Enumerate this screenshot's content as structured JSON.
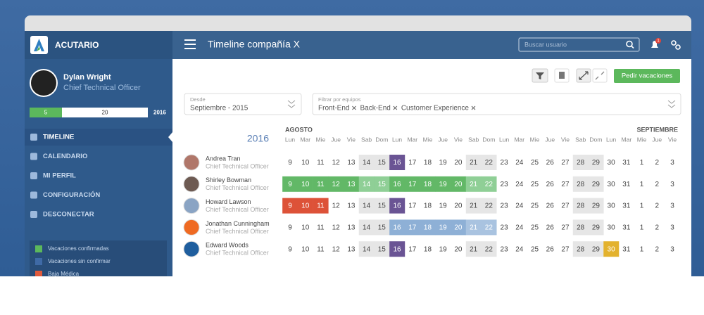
{
  "header": {
    "brand": "ACUTARIO",
    "title": "Timeline compañía X",
    "search_placeholder": "Buscar usuario",
    "notifications": "1"
  },
  "user": {
    "name": "Dylan Wright",
    "role": "Chief Technical Officer",
    "progress": {
      "used": "5",
      "total": "20",
      "year": "2016"
    }
  },
  "menu": [
    {
      "label": "TIMELINE",
      "active": true
    },
    {
      "label": "CALENDARIO",
      "active": false
    },
    {
      "label": "MI PERFIL",
      "active": false
    },
    {
      "label": "CONFIGURACIÓN",
      "active": false
    },
    {
      "label": "DESCONECTAR",
      "active": false
    }
  ],
  "legend": [
    {
      "label": "Vacaciones confirmadas",
      "color": "#5cb85c"
    },
    {
      "label": "Vacaciones sin confirmar",
      "color": "#3f6aa6"
    },
    {
      "label": "Baja Médica",
      "color": "#e05a3c"
    }
  ],
  "toolbar": {
    "button": "Pedir vacaciones"
  },
  "filters": {
    "date_label": "Desde",
    "date_value": "Septiembre - 2015",
    "teams_label": "Filtrar por equipos",
    "teams": [
      "Front-End",
      "Back-End",
      "Customer Experience"
    ]
  },
  "timeline": {
    "year": "2016",
    "months": [
      {
        "label": "AGOSTO",
        "start": 0
      },
      {
        "label": "SEPTIEMBRE",
        "start": 23
      }
    ],
    "today": 7,
    "days": [
      {
        "weekday": "Lun",
        "number": 9,
        "weekend": false
      },
      {
        "weekday": "Mar",
        "number": 10,
        "weekend": false
      },
      {
        "weekday": "Mie",
        "number": 11,
        "weekend": false
      },
      {
        "weekday": "Jue",
        "number": 12,
        "weekend": false
      },
      {
        "weekday": "Vie",
        "number": 13,
        "weekend": false
      },
      {
        "weekday": "Sab",
        "number": 14,
        "weekend": true
      },
      {
        "weekday": "Dom",
        "number": 15,
        "weekend": true
      },
      {
        "weekday": "Lun",
        "number": 16,
        "weekend": false
      },
      {
        "weekday": "Mar",
        "number": 17,
        "weekend": false
      },
      {
        "weekday": "Mie",
        "number": 18,
        "weekend": false
      },
      {
        "weekday": "Jue",
        "number": 19,
        "weekend": false
      },
      {
        "weekday": "Vie",
        "number": 20,
        "weekend": false
      },
      {
        "weekday": "Sab",
        "number": 21,
        "weekend": true
      },
      {
        "weekday": "Dom",
        "number": 22,
        "weekend": true
      },
      {
        "weekday": "Lun",
        "number": 23,
        "weekend": false
      },
      {
        "weekday": "Mar",
        "number": 24,
        "weekend": false
      },
      {
        "weekday": "Mie",
        "number": 25,
        "weekend": false
      },
      {
        "weekday": "Jue",
        "number": 26,
        "weekend": false
      },
      {
        "weekday": "Vie",
        "number": 27,
        "weekend": false
      },
      {
        "weekday": "Sab",
        "number": 28,
        "weekend": true
      },
      {
        "weekday": "Dom",
        "number": 29,
        "weekend": true
      },
      {
        "weekday": "Lun",
        "number": 30,
        "weekend": false
      },
      {
        "weekday": "Mar",
        "number": 31,
        "weekend": false
      },
      {
        "weekday": "Mie",
        "number": 1,
        "weekend": false
      },
      {
        "weekday": "Jue",
        "number": 2,
        "weekend": false
      },
      {
        "weekday": "Vie",
        "number": 3,
        "weekend": false
      }
    ],
    "colors": {
      "weekend": "#e6e6e6",
      "today": "#6a5494",
      "confirmed": [
        "#62b867",
        "#8fcf96"
      ],
      "unconfirmed": [
        "#8eb0d6",
        "#a9c3e0"
      ],
      "sick": [
        "#dd5238",
        "#dd5238"
      ],
      "other": [
        "#e3b22e",
        "#e3b22e"
      ]
    },
    "people": [
      {
        "name": "Andrea Tran",
        "role": "Chief Technical Officer",
        "avatar": "#b0776a",
        "absences": []
      },
      {
        "name": "Shirley Bowman",
        "role": "Chief Technical Officer",
        "avatar": "#6d5a52",
        "absences": [
          {
            "from": 0,
            "to": 13,
            "kind": "confirmed"
          }
        ]
      },
      {
        "name": "Howard Lawson",
        "role": "Chief Technical Officer",
        "avatar": "#8aa4c4",
        "absences": [
          {
            "from": 0,
            "to": 2,
            "kind": "sick"
          }
        ]
      },
      {
        "name": "Jonathan Cunningham",
        "role": "Chief Technical Officer",
        "avatar": "#ef6a22",
        "absences": [
          {
            "from": 7,
            "to": 13,
            "kind": "unconfirmed"
          }
        ]
      },
      {
        "name": "Edward Woods",
        "role": "Chief Technical Officer",
        "avatar": "#1f5e9e",
        "absences": [
          {
            "from": 21,
            "to": 21,
            "kind": "other"
          }
        ]
      }
    ]
  }
}
